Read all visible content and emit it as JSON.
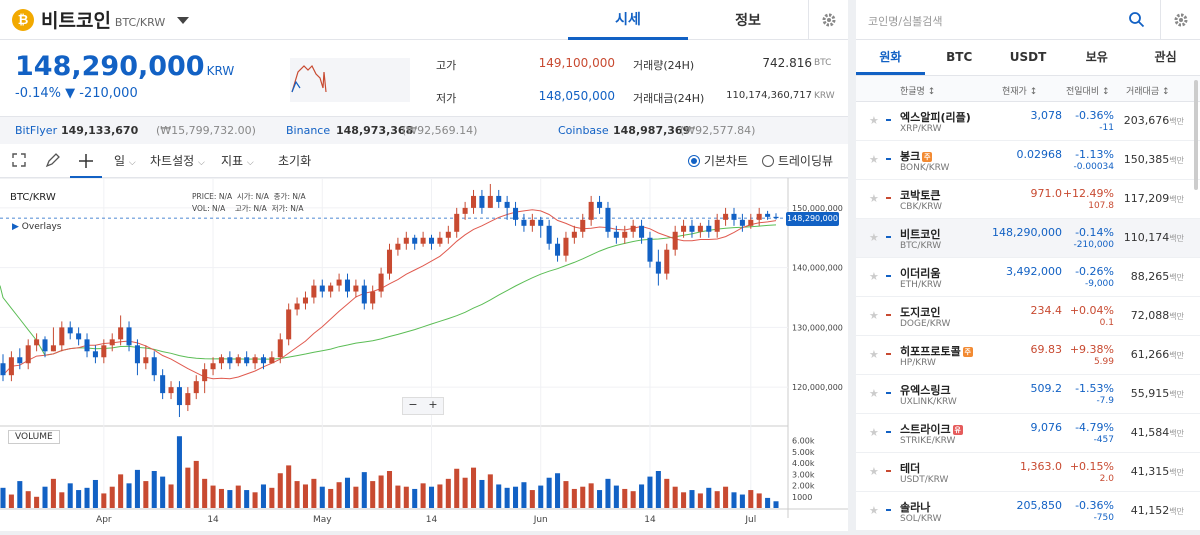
{
  "coin": {
    "icon": "₿",
    "name": "비트코인",
    "pair": "BTC/KRW"
  },
  "tabs": {
    "quote": "시세",
    "info": "정보"
  },
  "price": {
    "current": "148,290,000",
    "unit": "KRW",
    "change_rate": "-0.14%",
    "change_amt": "▼ -210,000"
  },
  "stats": {
    "high_label": "고가",
    "high": "149,100,000",
    "low_label": "저가",
    "low": "148,050,000",
    "vol_label": "거래량(24H)",
    "vol": "742.816",
    "vol_unit": "BTC",
    "amt_label": "거래대금(24H)",
    "amt": "110,174,360,717",
    "amt_unit": "KRW"
  },
  "exchanges": [
    {
      "name": "BitFlyer",
      "price": "149,133,670",
      "sub": "(₩15,799,732.00)"
    },
    {
      "name": "Binance",
      "price": "148,973,368",
      "sub": "(₩92,569.14)"
    },
    {
      "name": "Coinbase",
      "price": "148,987,369",
      "sub": "(₩92,577.84)"
    }
  ],
  "toolbar": {
    "interval": "일",
    "chart_settings": "차트설정",
    "indicator": "지표",
    "reset": "초기화",
    "basic_chart": "기본차트",
    "tradingview": "트레이딩뷰"
  },
  "chart_info": {
    "symbol": "BTC/KRW",
    "overlays": "Overlays",
    "volume_label": "VOLUME",
    "ohlc": [
      "PRICE: N/A",
      "시가: N/A",
      "종가: N/A",
      "VOL: N/A",
      "고가: N/A",
      "저가: N/A"
    ],
    "price_tag": "148,290,000",
    "zoom_minus": "−",
    "zoom_plus": "+"
  },
  "chart_data": {
    "type": "line",
    "price_axis": [
      "150,000,000",
      "140,000,000",
      "130,000,000",
      "120,000,000"
    ],
    "volume_axis": [
      "6.00k",
      "5.00k",
      "4.00k",
      "3.00k",
      "2.00k",
      "1000"
    ],
    "x_labels": [
      "Apr",
      "14",
      "May",
      "14",
      "Jun",
      "14",
      "Jul"
    ],
    "candles": [
      [
        124,
        122,
        125.5,
        121
      ],
      [
        122,
        125,
        126,
        121
      ],
      [
        125,
        124,
        126.5,
        123
      ],
      [
        124,
        127,
        128,
        123
      ],
      [
        127,
        128,
        129,
        126
      ],
      [
        128,
        126,
        128.5,
        125
      ],
      [
        126,
        127,
        130,
        126
      ],
      [
        127,
        130,
        131,
        126
      ],
      [
        130,
        129,
        131,
        128
      ],
      [
        129,
        128,
        130,
        127
      ],
      [
        128,
        126,
        129,
        125
      ],
      [
        126,
        125,
        127,
        124
      ],
      [
        125,
        127,
        128,
        124
      ],
      [
        127,
        128,
        129,
        126
      ],
      [
        128,
        130,
        132,
        127
      ],
      [
        130,
        127,
        131,
        126
      ],
      [
        127,
        124,
        128,
        122
      ],
      [
        124,
        125,
        127,
        123
      ],
      [
        125,
        122,
        126,
        121
      ],
      [
        122,
        119,
        123,
        118
      ],
      [
        119,
        120,
        121,
        118
      ],
      [
        120,
        117,
        121,
        115
      ],
      [
        117,
        119,
        120,
        116
      ],
      [
        119,
        121,
        122,
        118
      ],
      [
        121,
        123,
        124,
        119
      ],
      [
        123,
        124,
        125,
        122
      ],
      [
        124,
        125,
        125.5,
        123
      ],
      [
        125,
        124,
        126,
        123
      ],
      [
        124,
        125,
        125.5,
        123.5
      ],
      [
        125,
        124,
        126,
        123.5
      ],
      [
        124,
        125,
        125.5,
        123
      ],
      [
        125,
        124,
        125.5,
        123
      ],
      [
        124,
        125,
        126,
        124
      ],
      [
        125,
        128,
        129,
        124
      ],
      [
        128,
        133,
        134,
        127
      ],
      [
        133,
        134,
        135,
        132
      ],
      [
        134,
        135,
        136,
        133
      ],
      [
        135,
        137,
        138,
        134
      ],
      [
        137,
        136,
        138,
        135
      ],
      [
        136,
        137,
        137.5,
        135
      ],
      [
        137,
        138,
        139,
        136
      ],
      [
        138,
        136,
        139,
        135
      ],
      [
        136,
        137,
        138,
        135
      ],
      [
        137,
        134,
        138,
        133
      ],
      [
        134,
        136,
        137,
        133
      ],
      [
        136,
        139,
        140,
        135
      ],
      [
        139,
        143,
        144,
        138
      ],
      [
        143,
        144,
        145,
        142
      ],
      [
        144,
        145,
        146,
        143
      ],
      [
        145,
        144,
        145.5,
        143
      ],
      [
        144,
        145,
        146,
        143.5
      ],
      [
        145,
        144,
        145.5,
        143
      ],
      [
        144,
        145,
        146,
        143.5
      ],
      [
        145,
        146,
        147,
        144
      ],
      [
        146,
        149,
        150,
        145
      ],
      [
        149,
        150,
        151,
        148
      ],
      [
        150,
        152,
        153,
        149
      ],
      [
        152,
        150,
        153,
        149
      ],
      [
        150,
        152,
        154,
        150
      ],
      [
        152,
        151,
        153,
        150
      ],
      [
        151,
        150,
        152,
        148
      ],
      [
        150,
        148,
        151,
        147
      ],
      [
        148,
        147,
        149,
        146
      ],
      [
        147,
        148,
        149,
        146
      ],
      [
        148,
        147,
        148.5,
        145
      ],
      [
        147,
        144,
        148,
        143
      ],
      [
        144,
        142,
        145,
        141
      ],
      [
        142,
        145,
        146,
        141
      ],
      [
        145,
        146,
        147,
        144
      ],
      [
        146,
        148,
        149,
        145
      ],
      [
        148,
        151,
        152,
        147
      ],
      [
        151,
        150,
        152,
        149
      ],
      [
        150,
        146,
        151,
        145
      ],
      [
        146,
        145,
        147,
        144
      ],
      [
        145,
        146,
        147,
        144
      ],
      [
        146,
        147,
        148,
        145
      ],
      [
        147,
        145,
        148,
        144
      ],
      [
        145,
        141,
        146,
        140
      ],
      [
        141,
        139,
        143,
        137
      ],
      [
        139,
        143,
        144,
        138
      ],
      [
        143,
        146,
        147,
        142
      ],
      [
        146,
        147,
        148,
        145
      ],
      [
        147,
        146,
        148,
        145
      ],
      [
        146,
        147,
        147.5,
        145
      ],
      [
        147,
        146,
        148,
        145
      ],
      [
        146,
        148,
        149,
        145
      ],
      [
        148,
        149,
        150,
        147
      ],
      [
        149,
        148,
        150,
        147
      ],
      [
        148,
        147,
        149,
        146
      ],
      [
        147,
        148,
        149,
        146.5
      ],
      [
        148,
        149,
        150,
        147
      ],
      [
        149,
        148.5,
        149.5,
        148
      ],
      [
        148.5,
        148.29,
        149.1,
        148.05
      ]
    ],
    "volumes": [
      1.8,
      1.2,
      2.4,
      1.5,
      1.0,
      1.9,
      2.6,
      1.4,
      2.2,
      1.6,
      1.8,
      2.5,
      1.3,
      1.9,
      3.0,
      2.2,
      3.4,
      2.4,
      3.3,
      2.8,
      2.1,
      6.4,
      3.6,
      4.2,
      2.6,
      2.0,
      1.7,
      1.6,
      2.0,
      1.6,
      1.4,
      2.1,
      1.8,
      3.1,
      3.8,
      2.4,
      2.1,
      2.6,
      1.9,
      1.7,
      2.3,
      2.7,
      1.9,
      3.2,
      2.4,
      2.9,
      3.3,
      2.0,
      1.9,
      1.7,
      2.2,
      1.9,
      2.1,
      2.6,
      3.5,
      2.7,
      3.6,
      2.5,
      3.0,
      2.1,
      1.8,
      1.9,
      2.3,
      1.6,
      2.0,
      2.7,
      3.1,
      2.4,
      1.7,
      1.9,
      2.2,
      1.6,
      2.6,
      2.0,
      1.7,
      1.5,
      2.1,
      2.8,
      3.3,
      2.6,
      1.9,
      1.4,
      1.6,
      1.3,
      1.8,
      1.5,
      1.9,
      1.4,
      1.2,
      1.6,
      1.3,
      0.9,
      0.6
    ]
  },
  "market": {
    "search_placeholder": "코인명/심볼검색",
    "tabs": [
      "원화",
      "BTC",
      "USDT",
      "보유",
      "관심"
    ],
    "cols": [
      "한글명 ↕",
      "현재가 ↕",
      "전일대비 ↕",
      "거래대금 ↕"
    ],
    "unit_million": "백만",
    "rows": [
      {
        "name": "엑스알피(리플)",
        "pair": "XRP/KRW",
        "price": "3,078",
        "pct": "-0.36%",
        "amt": "-11",
        "vol": "203,676",
        "dir": "down"
      },
      {
        "name": "봉크",
        "pair": "BONK/KRW",
        "price": "0.02968",
        "pct": "-1.13%",
        "amt": "-0.00034",
        "vol": "150,385",
        "dir": "down",
        "badge": "주",
        "badge_color": "#f28a32"
      },
      {
        "name": "코박토큰",
        "pair": "CBK/KRW",
        "price": "971.0",
        "pct": "+12.49%",
        "amt": "107.8",
        "vol": "117,209",
        "dir": "up"
      },
      {
        "name": "비트코인",
        "pair": "BTC/KRW",
        "price": "148,290,000",
        "pct": "-0.14%",
        "amt": "-210,000",
        "vol": "110,174",
        "dir": "down",
        "selected": true
      },
      {
        "name": "이더리움",
        "pair": "ETH/KRW",
        "price": "3,492,000",
        "pct": "-0.26%",
        "amt": "-9,000",
        "vol": "88,265",
        "dir": "down"
      },
      {
        "name": "도지코인",
        "pair": "DOGE/KRW",
        "price": "234.4",
        "pct": "+0.04%",
        "amt": "0.1",
        "vol": "72,088",
        "dir": "up"
      },
      {
        "name": "히포프로토콜",
        "pair": "HP/KRW",
        "price": "69.83",
        "pct": "+9.38%",
        "amt": "5.99",
        "vol": "61,266",
        "dir": "up",
        "badge": "주",
        "badge_color": "#f28a32"
      },
      {
        "name": "유엑스링크",
        "pair": "UXLINK/KRW",
        "price": "509.2",
        "pct": "-1.53%",
        "amt": "-7.9",
        "vol": "55,915",
        "dir": "down"
      },
      {
        "name": "스트라이크",
        "pair": "STRIKE/KRW",
        "price": "9,076",
        "pct": "-4.79%",
        "amt": "-457",
        "vol": "41,584",
        "dir": "down",
        "badge": "유",
        "badge_color": "#e55b5b"
      },
      {
        "name": "테더",
        "pair": "USDT/KRW",
        "price": "1,363.0",
        "pct": "+0.15%",
        "amt": "2.0",
        "vol": "41,315",
        "dir": "up"
      },
      {
        "name": "솔라나",
        "pair": "SOL/KRW",
        "price": "205,850",
        "pct": "-0.36%",
        "amt": "-750",
        "vol": "41,152",
        "dir": "down"
      }
    ]
  },
  "colors": {
    "up": "#c84a31",
    "down": "#1261c4",
    "accent": "#1261c4",
    "ma_red": "#e05a4f",
    "ma_green": "#5bbd55"
  }
}
